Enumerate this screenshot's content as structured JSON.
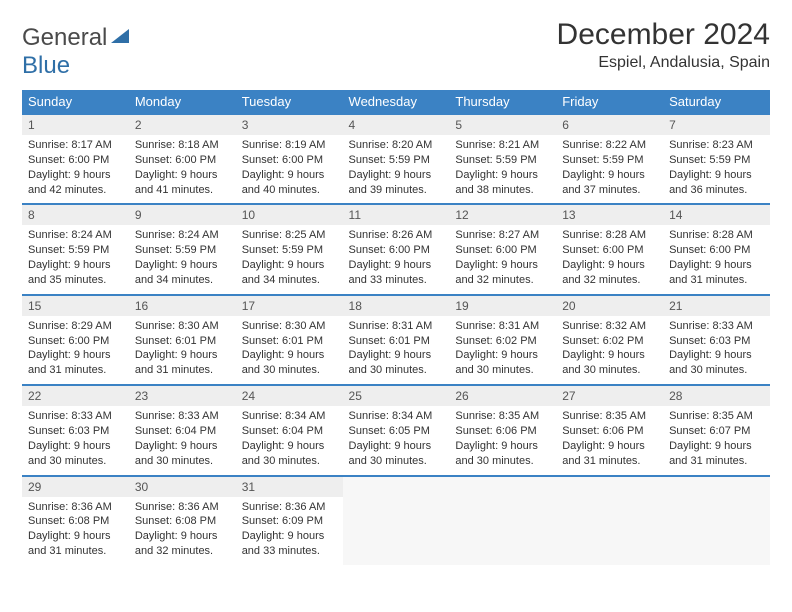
{
  "brand": {
    "part1": "General",
    "part2": "Blue"
  },
  "title": "December 2024",
  "location": "Espiel, Andalusia, Spain",
  "colors": {
    "header_bg": "#3b82c4",
    "header_text": "#ffffff",
    "daynum_bg": "#eeeeee",
    "border": "#3b82c4",
    "body_text": "#333333",
    "logo_gray": "#4a4a4a",
    "logo_blue": "#2f6fa7"
  },
  "day_headers": [
    "Sunday",
    "Monday",
    "Tuesday",
    "Wednesday",
    "Thursday",
    "Friday",
    "Saturday"
  ],
  "weeks": [
    [
      {
        "num": "1",
        "sunrise": "Sunrise: 8:17 AM",
        "sunset": "Sunset: 6:00 PM",
        "daylight": "Daylight: 9 hours and 42 minutes."
      },
      {
        "num": "2",
        "sunrise": "Sunrise: 8:18 AM",
        "sunset": "Sunset: 6:00 PM",
        "daylight": "Daylight: 9 hours and 41 minutes."
      },
      {
        "num": "3",
        "sunrise": "Sunrise: 8:19 AM",
        "sunset": "Sunset: 6:00 PM",
        "daylight": "Daylight: 9 hours and 40 minutes."
      },
      {
        "num": "4",
        "sunrise": "Sunrise: 8:20 AM",
        "sunset": "Sunset: 5:59 PM",
        "daylight": "Daylight: 9 hours and 39 minutes."
      },
      {
        "num": "5",
        "sunrise": "Sunrise: 8:21 AM",
        "sunset": "Sunset: 5:59 PM",
        "daylight": "Daylight: 9 hours and 38 minutes."
      },
      {
        "num": "6",
        "sunrise": "Sunrise: 8:22 AM",
        "sunset": "Sunset: 5:59 PM",
        "daylight": "Daylight: 9 hours and 37 minutes."
      },
      {
        "num": "7",
        "sunrise": "Sunrise: 8:23 AM",
        "sunset": "Sunset: 5:59 PM",
        "daylight": "Daylight: 9 hours and 36 minutes."
      }
    ],
    [
      {
        "num": "8",
        "sunrise": "Sunrise: 8:24 AM",
        "sunset": "Sunset: 5:59 PM",
        "daylight": "Daylight: 9 hours and 35 minutes."
      },
      {
        "num": "9",
        "sunrise": "Sunrise: 8:24 AM",
        "sunset": "Sunset: 5:59 PM",
        "daylight": "Daylight: 9 hours and 34 minutes."
      },
      {
        "num": "10",
        "sunrise": "Sunrise: 8:25 AM",
        "sunset": "Sunset: 5:59 PM",
        "daylight": "Daylight: 9 hours and 34 minutes."
      },
      {
        "num": "11",
        "sunrise": "Sunrise: 8:26 AM",
        "sunset": "Sunset: 6:00 PM",
        "daylight": "Daylight: 9 hours and 33 minutes."
      },
      {
        "num": "12",
        "sunrise": "Sunrise: 8:27 AM",
        "sunset": "Sunset: 6:00 PM",
        "daylight": "Daylight: 9 hours and 32 minutes."
      },
      {
        "num": "13",
        "sunrise": "Sunrise: 8:28 AM",
        "sunset": "Sunset: 6:00 PM",
        "daylight": "Daylight: 9 hours and 32 minutes."
      },
      {
        "num": "14",
        "sunrise": "Sunrise: 8:28 AM",
        "sunset": "Sunset: 6:00 PM",
        "daylight": "Daylight: 9 hours and 31 minutes."
      }
    ],
    [
      {
        "num": "15",
        "sunrise": "Sunrise: 8:29 AM",
        "sunset": "Sunset: 6:00 PM",
        "daylight": "Daylight: 9 hours and 31 minutes."
      },
      {
        "num": "16",
        "sunrise": "Sunrise: 8:30 AM",
        "sunset": "Sunset: 6:01 PM",
        "daylight": "Daylight: 9 hours and 31 minutes."
      },
      {
        "num": "17",
        "sunrise": "Sunrise: 8:30 AM",
        "sunset": "Sunset: 6:01 PM",
        "daylight": "Daylight: 9 hours and 30 minutes."
      },
      {
        "num": "18",
        "sunrise": "Sunrise: 8:31 AM",
        "sunset": "Sunset: 6:01 PM",
        "daylight": "Daylight: 9 hours and 30 minutes."
      },
      {
        "num": "19",
        "sunrise": "Sunrise: 8:31 AM",
        "sunset": "Sunset: 6:02 PM",
        "daylight": "Daylight: 9 hours and 30 minutes."
      },
      {
        "num": "20",
        "sunrise": "Sunrise: 8:32 AM",
        "sunset": "Sunset: 6:02 PM",
        "daylight": "Daylight: 9 hours and 30 minutes."
      },
      {
        "num": "21",
        "sunrise": "Sunrise: 8:33 AM",
        "sunset": "Sunset: 6:03 PM",
        "daylight": "Daylight: 9 hours and 30 minutes."
      }
    ],
    [
      {
        "num": "22",
        "sunrise": "Sunrise: 8:33 AM",
        "sunset": "Sunset: 6:03 PM",
        "daylight": "Daylight: 9 hours and 30 minutes."
      },
      {
        "num": "23",
        "sunrise": "Sunrise: 8:33 AM",
        "sunset": "Sunset: 6:04 PM",
        "daylight": "Daylight: 9 hours and 30 minutes."
      },
      {
        "num": "24",
        "sunrise": "Sunrise: 8:34 AM",
        "sunset": "Sunset: 6:04 PM",
        "daylight": "Daylight: 9 hours and 30 minutes."
      },
      {
        "num": "25",
        "sunrise": "Sunrise: 8:34 AM",
        "sunset": "Sunset: 6:05 PM",
        "daylight": "Daylight: 9 hours and 30 minutes."
      },
      {
        "num": "26",
        "sunrise": "Sunrise: 8:35 AM",
        "sunset": "Sunset: 6:06 PM",
        "daylight": "Daylight: 9 hours and 30 minutes."
      },
      {
        "num": "27",
        "sunrise": "Sunrise: 8:35 AM",
        "sunset": "Sunset: 6:06 PM",
        "daylight": "Daylight: 9 hours and 31 minutes."
      },
      {
        "num": "28",
        "sunrise": "Sunrise: 8:35 AM",
        "sunset": "Sunset: 6:07 PM",
        "daylight": "Daylight: 9 hours and 31 minutes."
      }
    ],
    [
      {
        "num": "29",
        "sunrise": "Sunrise: 8:36 AM",
        "sunset": "Sunset: 6:08 PM",
        "daylight": "Daylight: 9 hours and 31 minutes."
      },
      {
        "num": "30",
        "sunrise": "Sunrise: 8:36 AM",
        "sunset": "Sunset: 6:08 PM",
        "daylight": "Daylight: 9 hours and 32 minutes."
      },
      {
        "num": "31",
        "sunrise": "Sunrise: 8:36 AM",
        "sunset": "Sunset: 6:09 PM",
        "daylight": "Daylight: 9 hours and 33 minutes."
      },
      null,
      null,
      null,
      null
    ]
  ]
}
